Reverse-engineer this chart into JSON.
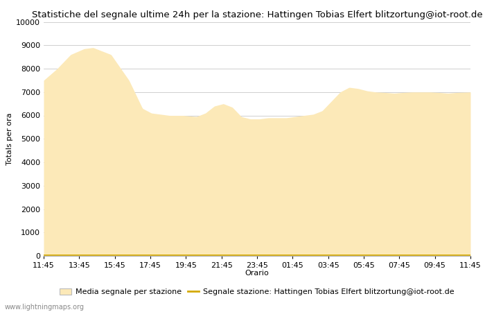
{
  "title": "Statistiche del segnale ultime 24h per la stazione: Hattingen Tobias Elfert blitzortung@iot-root.de",
  "xlabel": "Orario",
  "ylabel": "Totals per ora",
  "x_ticks": [
    "11:45",
    "13:45",
    "15:45",
    "17:45",
    "19:45",
    "21:45",
    "23:45",
    "01:45",
    "03:45",
    "05:45",
    "07:45",
    "09:45",
    "11:45"
  ],
  "ylim": [
    0,
    10000
  ],
  "yticks": [
    0,
    1000,
    2000,
    3000,
    4000,
    5000,
    6000,
    7000,
    8000,
    9000,
    10000
  ],
  "fill_color": "#fce9b8",
  "line_color": "#d4a900",
  "bg_color": "#ffffff",
  "grid_color": "#c8c8c8",
  "legend_fill_label": "Media segnale per stazione",
  "legend_line_label": "Segnale stazione: Hattingen Tobias Elfert blitzortung@iot-root.de",
  "watermark": "www.lightningmaps.org",
  "title_fontsize": 9.5,
  "axis_fontsize": 8,
  "tick_fontsize": 8,
  "key_x": [
    0,
    3,
    6,
    9,
    11,
    15,
    19,
    22,
    24,
    26,
    28,
    31,
    34,
    36,
    38,
    40,
    42,
    44,
    46,
    48,
    50,
    52,
    54,
    56,
    58,
    60,
    62,
    64,
    66,
    68,
    70,
    72,
    74,
    76,
    78,
    80,
    82,
    84,
    86,
    88,
    90,
    92,
    95
  ],
  "key_y": [
    7500,
    8000,
    8600,
    8850,
    8900,
    8600,
    7500,
    6300,
    6100,
    6050,
    6000,
    6000,
    5950,
    6100,
    6400,
    6500,
    6350,
    5950,
    5850,
    5850,
    5900,
    5900,
    5900,
    5950,
    6000,
    6050,
    6200,
    6600,
    7000,
    7200,
    7150,
    7050,
    7000,
    6980,
    6950,
    6980,
    7000,
    7000,
    7000,
    6980,
    6950,
    6980,
    7000
  ]
}
